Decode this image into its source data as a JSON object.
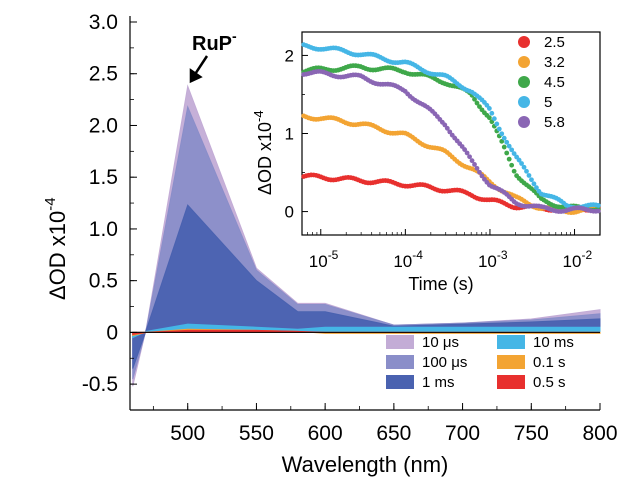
{
  "chart_data": [
    {
      "type": "area",
      "xlabel": "Wavelength (nm)",
      "ylabel_main": "ΔOD x10",
      "ylabel_exp": "-4",
      "xlim": [
        458,
        800
      ],
      "ylim": [
        -0.75,
        3.0
      ],
      "xticks": [
        "500",
        "550",
        "600",
        "650",
        "700",
        "750",
        "800"
      ],
      "yticks": [
        "3.0",
        "2.5",
        "2.0",
        "1.5",
        "1.0",
        "0.5",
        "0",
        "-0.5"
      ],
      "annotation": {
        "text": "RuP",
        "superscript": "-",
        "x": 500,
        "y": 2.38
      },
      "x": [
        460,
        470,
        500,
        550,
        580,
        600,
        650,
        700,
        750,
        800
      ],
      "series": [
        {
          "name": "10 μs",
          "color": "#c3acd6",
          "values": [
            -0.52,
            0.05,
            2.38,
            0.62,
            0.28,
            0.28,
            0.07,
            0.09,
            0.13,
            0.22
          ]
        },
        {
          "name": "100 μs",
          "color": "#8a8ec9",
          "values": [
            -0.45,
            0.04,
            2.18,
            0.6,
            0.27,
            0.27,
            0.07,
            0.09,
            0.12,
            0.18
          ]
        },
        {
          "name": "1 ms",
          "color": "#4a62b0",
          "values": [
            -0.35,
            0.03,
            1.23,
            0.5,
            0.2,
            0.2,
            0.06,
            0.08,
            0.1,
            0.13
          ]
        },
        {
          "name": "10 ms",
          "color": "#45b6e6",
          "values": [
            -0.05,
            0.01,
            0.08,
            0.05,
            0.03,
            0.05,
            0.05,
            0.05,
            0.05,
            0.05
          ]
        },
        {
          "name": "0.1 s",
          "color": "#f3a433",
          "values": [
            -0.03,
            0.0,
            0.03,
            0.02,
            0.01,
            -0.01,
            -0.01,
            -0.01,
            -0.01,
            -0.01
          ]
        },
        {
          "name": "0.5 s",
          "color": "#e8302e",
          "values": [
            -0.02,
            0.0,
            0.02,
            0.02,
            0.01,
            0.0,
            0.0,
            0.0,
            0.0,
            0.0
          ]
        }
      ],
      "legend": "bottom-right"
    },
    {
      "type": "scatter",
      "xlabel": "Time (s)",
      "ylabel_main": "ΔOD x10",
      "ylabel_exp": "-4",
      "xscale": "log",
      "xlim": [
        6e-06,
        0.02
      ],
      "ylim": [
        -0.3,
        2.3
      ],
      "xticks": [
        {
          "base": "10",
          "exp": "-5"
        },
        {
          "base": "10",
          "exp": "-4"
        },
        {
          "base": "10",
          "exp": "-3"
        },
        {
          "base": "10",
          "exp": "-2"
        }
      ],
      "yticks": [
        "2",
        "1",
        "0"
      ],
      "series": [
        {
          "name": "2.5",
          "color": "#e8302e",
          "x": [
            6e-06,
            1e-05,
            3e-05,
            0.0001,
            0.0003,
            0.0006,
            0.001,
            0.002,
            0.004,
            0.008,
            0.02
          ],
          "y": [
            0.45,
            0.44,
            0.4,
            0.35,
            0.28,
            0.22,
            0.14,
            0.07,
            0.04,
            0.04,
            0.04
          ]
        },
        {
          "name": "3.2",
          "color": "#f3a433",
          "x": [
            6e-06,
            1e-05,
            3e-05,
            0.0001,
            0.0003,
            0.0006,
            0.001,
            0.002,
            0.004,
            0.008,
            0.02
          ],
          "y": [
            1.22,
            1.2,
            1.12,
            0.98,
            0.75,
            0.55,
            0.38,
            0.17,
            0.05,
            0.01,
            0.02
          ]
        },
        {
          "name": "4.5",
          "color": "#3fa84a",
          "x": [
            6e-06,
            1e-05,
            3e-05,
            0.0001,
            0.0003,
            0.0006,
            0.001,
            0.002,
            0.004,
            0.008,
            0.02
          ],
          "y": [
            1.8,
            1.82,
            1.85,
            1.8,
            1.66,
            1.5,
            1.2,
            0.5,
            0.15,
            0.05,
            0.04
          ]
        },
        {
          "name": "5",
          "color": "#45b6e6",
          "x": [
            6e-06,
            1e-05,
            3e-05,
            0.0001,
            0.0003,
            0.0006,
            0.001,
            0.002,
            0.004,
            0.008,
            0.02
          ],
          "y": [
            2.12,
            2.1,
            2.02,
            1.9,
            1.72,
            1.55,
            1.3,
            0.7,
            0.25,
            0.08,
            0.06
          ]
        },
        {
          "name": "5.8",
          "color": "#8a66b4",
          "x": [
            6e-06,
            1e-05,
            3e-05,
            0.0001,
            0.0003,
            0.0006,
            0.001,
            0.002,
            0.004,
            0.008,
            0.02
          ],
          "y": [
            1.78,
            1.77,
            1.72,
            1.55,
            1.12,
            0.65,
            0.35,
            0.12,
            0.04,
            0.02,
            0.03
          ]
        }
      ],
      "legend": "right"
    }
  ]
}
